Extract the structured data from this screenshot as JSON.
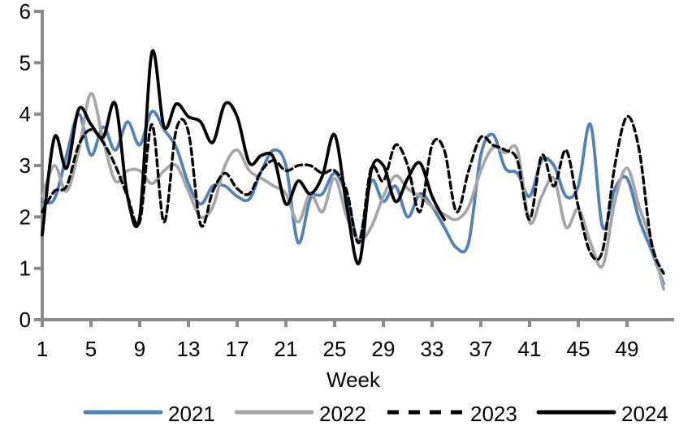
{
  "chart_data": {
    "type": "line",
    "title": "",
    "xlabel": "Week",
    "ylabel": "",
    "xlim": [
      1,
      53
    ],
    "ylim": [
      0,
      6
    ],
    "x_ticks": [
      1,
      5,
      9,
      13,
      17,
      21,
      25,
      29,
      33,
      37,
      41,
      45,
      49
    ],
    "y_ticks": [
      0,
      1,
      2,
      3,
      4,
      5,
      6
    ],
    "grid": false,
    "legend_position": "bottom",
    "axis_color": "#8a8a8a",
    "smoothed": true,
    "weeks_per_point": 1,
    "series": [
      {
        "name": "2021",
        "color": "#4F81BD",
        "style": "solid",
        "start_week": 1,
        "values": [
          2.3,
          2.35,
          3.2,
          4.0,
          3.2,
          3.75,
          3.3,
          3.85,
          3.4,
          4.05,
          3.7,
          3.35,
          2.65,
          2.25,
          2.6,
          2.6,
          2.4,
          2.35,
          2.9,
          3.3,
          3.0,
          1.5,
          2.35,
          2.45,
          2.85,
          2.4,
          1.55,
          2.7,
          2.3,
          2.6,
          2.0,
          2.45,
          2.2,
          1.8,
          1.4,
          1.5,
          3.2,
          3.6,
          2.95,
          2.85,
          2.4,
          3.1,
          3.0,
          2.4,
          2.6,
          3.8,
          1.8,
          2.55,
          2.75,
          1.95,
          1.35,
          0.7
        ]
      },
      {
        "name": "2022",
        "color": "#A6A6A6",
        "style": "solid",
        "start_week": 1,
        "values": [
          2.4,
          3.0,
          2.5,
          3.3,
          4.4,
          3.5,
          2.7,
          2.9,
          2.9,
          2.65,
          2.9,
          3.0,
          2.5,
          2.0,
          2.2,
          3.0,
          3.3,
          2.9,
          2.75,
          2.6,
          2.45,
          1.9,
          2.45,
          2.1,
          2.75,
          2.0,
          1.55,
          1.8,
          2.4,
          2.8,
          2.55,
          2.4,
          2.2,
          2.05,
          1.95,
          2.2,
          2.9,
          3.35,
          3.25,
          3.3,
          1.9,
          2.4,
          2.75,
          1.8,
          2.15,
          1.5,
          1.05,
          2.3,
          2.95,
          2.2,
          1.5,
          0.6
        ]
      },
      {
        "name": "2023",
        "color": "#000000",
        "style": "dashed",
        "start_week": 1,
        "values": [
          2.1,
          2.5,
          2.6,
          3.4,
          3.7,
          3.45,
          3.0,
          2.4,
          1.9,
          3.8,
          1.9,
          3.7,
          3.65,
          1.85,
          2.5,
          2.85,
          2.55,
          2.45,
          2.9,
          3.1,
          2.9,
          3.0,
          3.0,
          2.85,
          2.9,
          2.5,
          1.5,
          2.95,
          2.7,
          3.4,
          3.0,
          2.1,
          3.4,
          3.3,
          2.1,
          2.9,
          3.55,
          3.4,
          3.3,
          3.1,
          1.95,
          3.2,
          2.6,
          3.3,
          2.2,
          1.3,
          1.35,
          3.0,
          3.95,
          3.3,
          1.5,
          0.9
        ]
      },
      {
        "name": "2024",
        "color": "#000000",
        "style": "solid",
        "start_week": 1,
        "values": [
          1.65,
          3.55,
          2.95,
          4.1,
          3.8,
          3.55,
          4.2,
          2.4,
          2.0,
          5.2,
          3.75,
          4.2,
          3.95,
          3.85,
          3.45,
          4.2,
          3.95,
          3.05,
          3.2,
          3.15,
          2.25,
          2.7,
          2.45,
          2.8,
          3.6,
          2.2,
          1.1,
          2.9,
          3.0,
          2.3,
          2.75,
          3.05,
          2.4,
          1.95
        ]
      }
    ]
  }
}
